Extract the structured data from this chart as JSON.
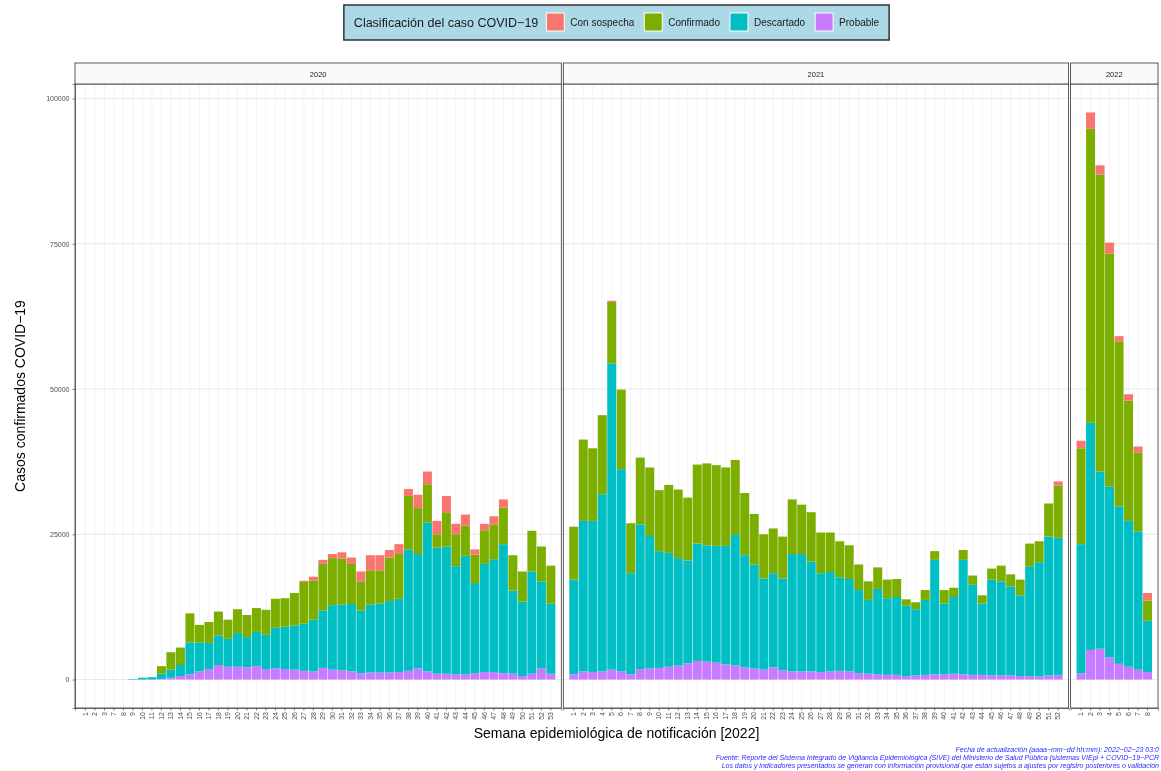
{
  "chart_data": [
    {
      "type": "bar",
      "title": "2020",
      "ylabel": "Casos confirmados COVID−19",
      "legend_title": "Clasificación del caso COVID−19",
      "legend": "top",
      "stacked": true,
      "grid": true,
      "categories": [
        "1",
        "2",
        "3",
        "7",
        "8",
        "9",
        "10",
        "11",
        "12",
        "13",
        "14",
        "15",
        "16",
        "17",
        "18",
        "19",
        "20",
        "21",
        "22",
        "23",
        "24",
        "25",
        "26",
        "27",
        "28",
        "29",
        "30",
        "31",
        "32",
        "33",
        "34",
        "35",
        "36",
        "37",
        "38",
        "39",
        "40",
        "41",
        "42",
        "43",
        "44",
        "45",
        "46",
        "47",
        "48",
        "49",
        "50",
        "51",
        "52",
        "53"
      ],
      "ylim": [
        -4900,
        102500
      ],
      "yticks": [
        0,
        25000,
        50000,
        75000,
        100000
      ],
      "series": [
        {
          "name": "Probable",
          "color": "#c77cff",
          "values": [
            0,
            0,
            0,
            0,
            0,
            0,
            0,
            0,
            100,
            300,
            600,
            900,
            1400,
            1800,
            2500,
            2200,
            2200,
            2100,
            2300,
            1800,
            1900,
            1800,
            1700,
            1500,
            1400,
            2000,
            1700,
            1600,
            1400,
            1100,
            1200,
            1200,
            1200,
            1300,
            1500,
            1900,
            1400,
            1000,
            1000,
            900,
            900,
            1100,
            1300,
            1300,
            1100,
            1000,
            600,
            1000,
            1900,
            1000
          ]
        },
        {
          "name": "Descartado",
          "color": "#00bfc4",
          "values": [
            0,
            0,
            0,
            0,
            0,
            100,
            300,
            400,
            900,
            1400,
            1900,
            5500,
            5000,
            4500,
            5100,
            4800,
            5800,
            5200,
            5900,
            5900,
            7000,
            7300,
            7600,
            8100,
            8900,
            9900,
            11100,
            11300,
            11600,
            10800,
            11700,
            11900,
            12300,
            12600,
            20900,
            19700,
            25600,
            21700,
            21900,
            18600,
            20400,
            15500,
            18600,
            19400,
            22200,
            14300,
            12800,
            17600,
            15000,
            12100
          ]
        },
        {
          "name": "Confirmado",
          "color": "#7cae00",
          "values": [
            0,
            0,
            0,
            0,
            0,
            0,
            0,
            0,
            1300,
            3000,
            3000,
            5000,
            3000,
            3600,
            4100,
            3300,
            4100,
            3800,
            4100,
            4300,
            5000,
            4900,
            5600,
            7200,
            6700,
            8000,
            8100,
            7900,
            6900,
            5000,
            5900,
            5700,
            7500,
            7700,
            9200,
            7900,
            6600,
            2300,
            5900,
            5500,
            5200,
            4900,
            5800,
            6000,
            6300,
            6100,
            5200,
            7000,
            6000,
            6500
          ]
        },
        {
          "name": "Con sospecha",
          "color": "#f8766d",
          "values": [
            0,
            0,
            0,
            0,
            0,
            0,
            0,
            0,
            0,
            0,
            0,
            0,
            0,
            0,
            0,
            0,
            0,
            0,
            0,
            0,
            0,
            0,
            0,
            200,
            700,
            700,
            700,
            1100,
            1100,
            1700,
            2600,
            2600,
            1300,
            1700,
            1200,
            2300,
            2200,
            2300,
            2800,
            1800,
            1900,
            900,
            1100,
            1400,
            1400,
            0,
            0,
            0,
            0,
            0
          ]
        }
      ]
    },
    {
      "type": "bar",
      "title": "2021",
      "xlabel": "Semana epidemiológica de notificación [2022]",
      "stacked": true,
      "grid": true,
      "tick_labels": "x",
      "categories": [
        "1",
        "2",
        "3",
        "4",
        "5",
        "6",
        "7",
        "8",
        "9",
        "10",
        "11",
        "12",
        "13",
        "14",
        "15",
        "16",
        "17",
        "18",
        "19",
        "20",
        "21",
        "22",
        "23",
        "24",
        "25",
        "26",
        "27",
        "28",
        "29",
        "30",
        "31",
        "32",
        "33",
        "34",
        "35",
        "36",
        "37",
        "38",
        "39",
        "40",
        "41",
        "42",
        "43",
        "44",
        "45",
        "46",
        "47",
        "48",
        "49",
        "50",
        "51",
        "52"
      ],
      "ylim": [
        -4900,
        102500
      ],
      "yticks": [
        0,
        25000,
        50000,
        75000,
        100000
      ],
      "series": [
        {
          "color": "#c77cff",
          "values": [
            900,
            1400,
            1300,
            1400,
            1700,
            1400,
            900,
            1800,
            1900,
            2000,
            2200,
            2400,
            2800,
            3200,
            3100,
            2900,
            2600,
            2400,
            2100,
            1900,
            1700,
            2100,
            1600,
            1400,
            1400,
            1400,
            1300,
            1400,
            1500,
            1400,
            1100,
            1000,
            900,
            800,
            800,
            600,
            700,
            800,
            900,
            900,
            1000,
            900,
            800,
            800,
            700,
            700,
            700,
            600,
            600,
            500,
            700,
            800
          ]
        },
        {
          "color": "#00bfc4",
          "values": [
            16300,
            25900,
            26000,
            30500,
            52700,
            34800,
            17400,
            24900,
            22800,
            20100,
            19600,
            18500,
            17700,
            20200,
            20000,
            20100,
            20400,
            22500,
            19300,
            17900,
            15700,
            16200,
            15800,
            20200,
            20200,
            18900,
            17000,
            17100,
            16100,
            15900,
            14300,
            12700,
            14700,
            13200,
            13400,
            12100,
            11400,
            12900,
            19700,
            12200,
            13200,
            19700,
            15500,
            12300,
            16500,
            16200,
            15300,
            13900,
            18900,
            19700,
            23900,
            23600
          ]
        },
        {
          "color": "#7cae00",
          "values": [
            9100,
            14000,
            12500,
            13600,
            10600,
            13700,
            8600,
            11500,
            11800,
            10500,
            11700,
            11800,
            10800,
            13600,
            14100,
            13900,
            13500,
            12900,
            10700,
            8700,
            7600,
            7700,
            7200,
            9400,
            8500,
            8500,
            7000,
            6800,
            6200,
            5800,
            4400,
            3200,
            3700,
            3200,
            3100,
            1100,
            1200,
            1700,
            1500,
            2300,
            1600,
            1700,
            1600,
            1400,
            1900,
            2700,
            2100,
            2700,
            3900,
            3600,
            5700,
            9000
          ]
        },
        {
          "color": "#f8766d",
          "values": [
            0,
            0,
            0,
            0,
            200,
            0,
            0,
            0,
            0,
            0,
            0,
            0,
            0,
            0,
            0,
            0,
            0,
            0,
            0,
            0,
            0,
            0,
            0,
            0,
            0,
            0,
            0,
            0,
            0,
            0,
            0,
            0,
            0,
            0,
            0,
            0,
            0,
            0,
            0,
            0,
            0,
            0,
            0,
            0,
            0,
            0,
            0,
            0,
            0,
            0,
            0,
            700
          ]
        }
      ]
    },
    {
      "type": "bar",
      "title": "2022",
      "stacked": true,
      "grid": true,
      "tick_labels": "x",
      "categories": [
        "1",
        "2",
        "3",
        "4",
        "5",
        "6",
        "7",
        "8"
      ],
      "ylim": [
        -4900,
        102500
      ],
      "yticks": [
        0,
        25000,
        50000,
        75000,
        100000
      ],
      "series": [
        {
          "color": "#c77cff",
          "values": [
            1100,
            5100,
            5300,
            3800,
            2700,
            2200,
            1700,
            1300
          ]
        },
        {
          "color": "#00bfc4",
          "values": [
            22200,
            39100,
            30500,
            29400,
            27100,
            25100,
            23800,
            8800
          ]
        },
        {
          "color": "#7cae00",
          "values": [
            16500,
            50600,
            51100,
            40100,
            28400,
            20700,
            13600,
            3500
          ]
        },
        {
          "color": "#f8766d",
          "values": [
            1300,
            2800,
            1600,
            1900,
            900,
            1100,
            1000,
            1300
          ]
        }
      ],
      "annotations": [
        "Fecha de actualización (aaaa−mm−dd hh:mm): 2022−02−23 03:0",
        "Fuente: Reporte del Sistema Integrado de Vigilancia Epidemiológica (SIVE) del Ministerio de Salud Pública (sistemas VIEpi + COVID−19−PCR",
        "Los datos y indicadores presentados se generan con información provisional que están sujetos a ajustes por registro posteriores o validación"
      ]
    }
  ]
}
